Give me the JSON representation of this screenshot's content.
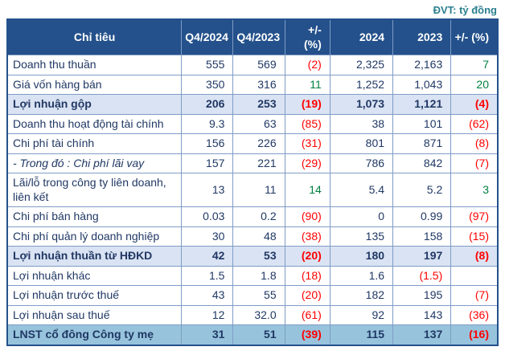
{
  "page": {
    "unit_label": "ĐVT: tỷ đồng"
  },
  "colors": {
    "header_bg": "#24518B",
    "text": "#203864",
    "negative": "#FF0000",
    "positive": "#008040",
    "highlight_row": "#DAE3F3",
    "total_row": "#97C4DC",
    "border": "#7F9CC6",
    "unit_label": "#2A7F8E"
  },
  "table": {
    "columns": [
      {
        "label": "Chỉ tiêu",
        "type": "label"
      },
      {
        "label": "Q4/2024",
        "type": "num"
      },
      {
        "label": "Q4/2023",
        "type": "num"
      },
      {
        "label": "+/- (%)",
        "type": "num"
      },
      {
        "label": "2024",
        "type": "num"
      },
      {
        "label": "2023",
        "type": "num"
      },
      {
        "label": "+/- (%)",
        "type": "num"
      }
    ],
    "rows": [
      {
        "label": "Doanh thu thuần",
        "cells": [
          {
            "v": "555"
          },
          {
            "v": "569"
          },
          {
            "v": "(2)",
            "c": "neg"
          },
          {
            "v": "2,325"
          },
          {
            "v": "2,163"
          },
          {
            "v": "7",
            "c": "pos"
          }
        ]
      },
      {
        "label": "Giá vốn hàng bán",
        "cells": [
          {
            "v": "350"
          },
          {
            "v": "316"
          },
          {
            "v": "11",
            "c": "pos"
          },
          {
            "v": "1,252"
          },
          {
            "v": "1,043"
          },
          {
            "v": "20",
            "c": "pos"
          }
        ]
      },
      {
        "label": "Lợi nhuận gộp",
        "highlight": "lavender",
        "cells": [
          {
            "v": "206"
          },
          {
            "v": "253"
          },
          {
            "v": "(19)",
            "c": "neg"
          },
          {
            "v": "1,073"
          },
          {
            "v": "1,121"
          },
          {
            "v": "(4)",
            "c": "neg"
          }
        ]
      },
      {
        "label": "Doanh thu hoạt động tài chính",
        "cells": [
          {
            "v": "9.3"
          },
          {
            "v": "63"
          },
          {
            "v": "(85)",
            "c": "neg"
          },
          {
            "v": "38"
          },
          {
            "v": "101"
          },
          {
            "v": "(62)",
            "c": "neg"
          }
        ]
      },
      {
        "label": "Chi phí tài chính",
        "cells": [
          {
            "v": "156"
          },
          {
            "v": "226"
          },
          {
            "v": "(31)",
            "c": "neg"
          },
          {
            "v": "801"
          },
          {
            "v": "871"
          },
          {
            "v": "(8)",
            "c": "neg"
          }
        ]
      },
      {
        "label": "- Trong đó : Chi phí lãi vay",
        "italic": true,
        "cells": [
          {
            "v": "157"
          },
          {
            "v": "221"
          },
          {
            "v": "(29)",
            "c": "neg"
          },
          {
            "v": "786"
          },
          {
            "v": "842"
          },
          {
            "v": "(7)",
            "c": "neg"
          }
        ]
      },
      {
        "label": "Lãi/lỗ trong công ty liên doanh, liên kết",
        "cells": [
          {
            "v": "13"
          },
          {
            "v": "11"
          },
          {
            "v": "14",
            "c": "pos"
          },
          {
            "v": "5.4"
          },
          {
            "v": "5.2"
          },
          {
            "v": "3",
            "c": "pos"
          }
        ]
      },
      {
        "label": "Chi phí bán hàng",
        "cells": [
          {
            "v": "0.03"
          },
          {
            "v": "0.2"
          },
          {
            "v": "(90)",
            "c": "neg"
          },
          {
            "v": "0"
          },
          {
            "v": "0.99"
          },
          {
            "v": "(97)",
            "c": "neg"
          }
        ]
      },
      {
        "label": "Chi phí quản lý doanh nghiệp",
        "cells": [
          {
            "v": "30"
          },
          {
            "v": "48"
          },
          {
            "v": "(38)",
            "c": "neg"
          },
          {
            "v": "135"
          },
          {
            "v": "158"
          },
          {
            "v": "(15)",
            "c": "neg"
          }
        ]
      },
      {
        "label": "Lợi nhuận thuần từ HĐKD",
        "highlight": "lavender",
        "cells": [
          {
            "v": "42"
          },
          {
            "v": "53"
          },
          {
            "v": "(20)",
            "c": "neg"
          },
          {
            "v": "180"
          },
          {
            "v": "197"
          },
          {
            "v": "(8)",
            "c": "neg"
          }
        ]
      },
      {
        "label": "Lợi nhuận khác",
        "cells": [
          {
            "v": "1.5"
          },
          {
            "v": "1.8"
          },
          {
            "v": "(18)",
            "c": "neg"
          },
          {
            "v": "1.6"
          },
          {
            "v": "(1.5)",
            "c": "neg"
          },
          {
            "v": ""
          }
        ]
      },
      {
        "label": "Lợi nhuận trước thuế",
        "cells": [
          {
            "v": "43"
          },
          {
            "v": "55"
          },
          {
            "v": "(20)",
            "c": "neg"
          },
          {
            "v": "182"
          },
          {
            "v": "195"
          },
          {
            "v": "(7)",
            "c": "neg"
          }
        ]
      },
      {
        "label": "Lợi nhuận sau thuế",
        "cells": [
          {
            "v": "12"
          },
          {
            "v": "32.0"
          },
          {
            "v": "(61)",
            "c": "neg"
          },
          {
            "v": "92"
          },
          {
            "v": "143"
          },
          {
            "v": "(36)",
            "c": "neg"
          }
        ]
      },
      {
        "label": "LNST cổ đông Công ty mẹ",
        "highlight": "teal",
        "cells": [
          {
            "v": "31"
          },
          {
            "v": "51"
          },
          {
            "v": "(39)",
            "c": "neg"
          },
          {
            "v": "115"
          },
          {
            "v": "137"
          },
          {
            "v": "(16)",
            "c": "neg"
          }
        ]
      }
    ]
  }
}
